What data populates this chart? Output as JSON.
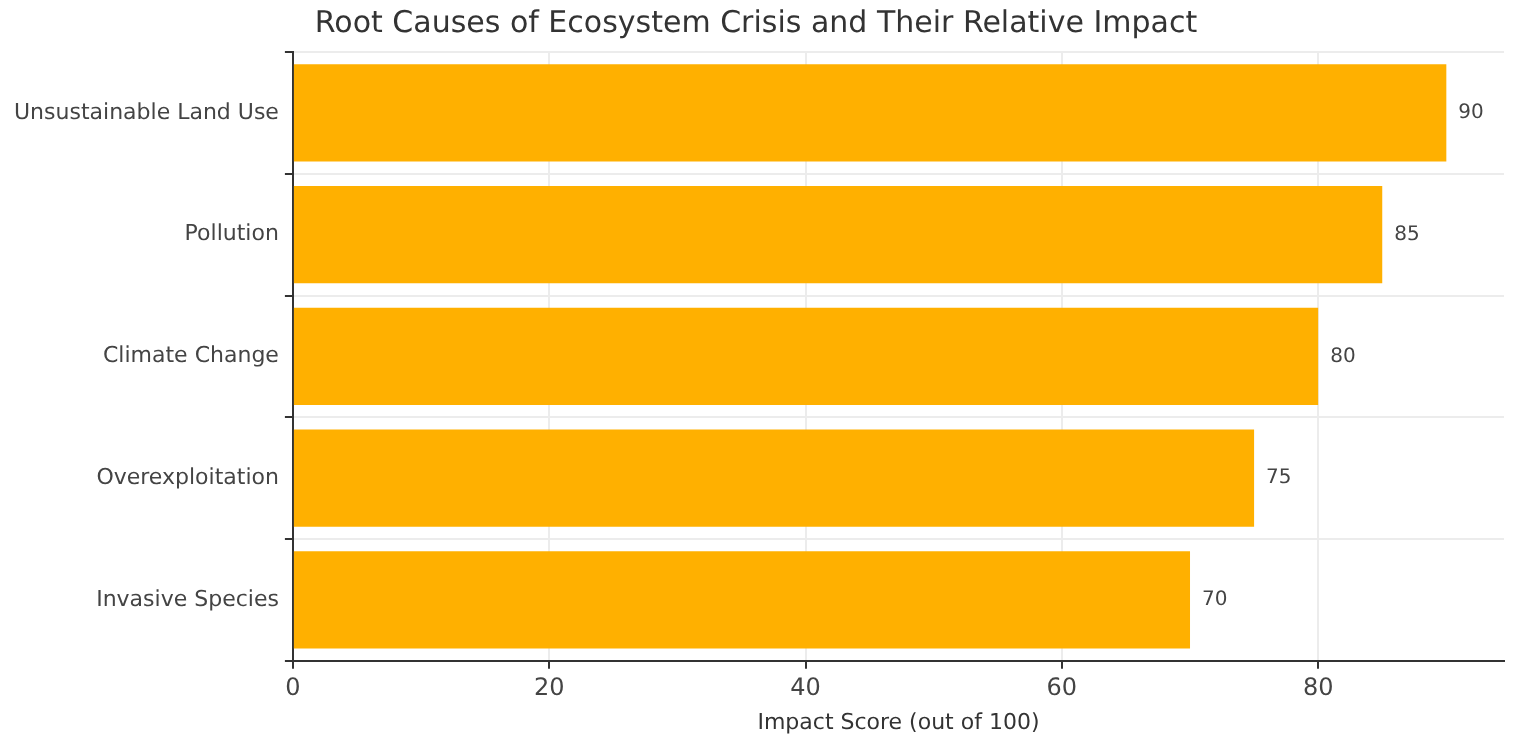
{
  "chart_data": {
    "type": "bar",
    "orientation": "horizontal",
    "title": "Root Causes of Ecosystem Crisis and Their Relative Impact",
    "xlabel": "Impact Score (out of 100)",
    "categories": [
      "Unsustainable Land Use",
      "Pollution",
      "Climate Change",
      "Overexploitation",
      "Invasive Species"
    ],
    "values": [
      90,
      85,
      80,
      75,
      70
    ],
    "color": "#ffb000",
    "xlim": [
      0,
      94.5
    ],
    "xticks": [
      0,
      20,
      40,
      60,
      80
    ],
    "grid": true,
    "data_labels": true
  }
}
